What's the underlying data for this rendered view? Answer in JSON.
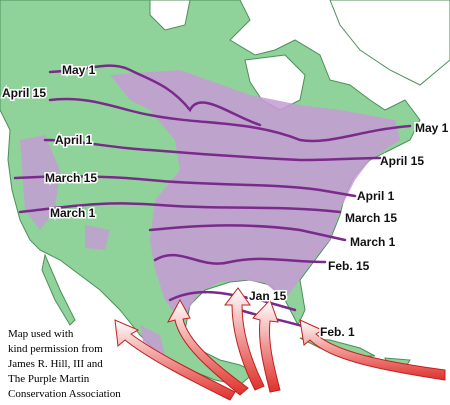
{
  "labels": {
    "west": [
      "May 1",
      "April 15",
      "April 1",
      "March 15",
      "March 1"
    ],
    "east": [
      "May 1",
      "April 15",
      "April 1",
      "March 15",
      "March 1",
      "Feb. 15",
      "Jan 15",
      "Feb. 1"
    ]
  },
  "caption": [
    "Map used with",
    "kind permission from",
    "James R. Hill, III and",
    "The Purple Martin",
    "Conservation Association"
  ]
}
